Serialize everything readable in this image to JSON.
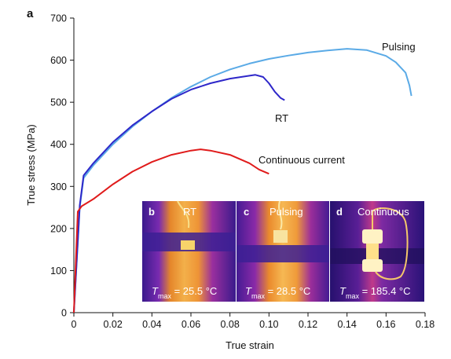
{
  "panel_label": "a",
  "colors": {
    "pulsing": "#5aaae6",
    "rt": "#2e27c9",
    "continuous": "#e01b1b",
    "axis": "#111111"
  },
  "chart_data": {
    "type": "line",
    "xlabel": "True strain",
    "ylabel": "True stress (MPa)",
    "xlim": [
      0,
      0.18
    ],
    "ylim": [
      0,
      700
    ],
    "xticks": [
      0,
      0.02,
      0.04,
      0.06,
      0.08,
      0.1,
      0.12,
      0.14,
      0.16,
      0.18
    ],
    "xtick_labels": [
      "0",
      "0.02",
      "0.04",
      "0.06",
      "0.08",
      "0.10",
      "0.12",
      "0.14",
      "0.16",
      "0.18"
    ],
    "yticks": [
      0,
      100,
      200,
      300,
      400,
      500,
      600,
      700
    ],
    "ytick_labels": [
      "0",
      "100",
      "200",
      "300",
      "400",
      "500",
      "600",
      "700"
    ],
    "grid": false,
    "legend": "none (series labelled directly on the plot)",
    "series": [
      {
        "name": "Pulsing",
        "color_key": "pulsing",
        "x": [
          0,
          0.003,
          0.005,
          0.01,
          0.02,
          0.03,
          0.04,
          0.05,
          0.06,
          0.07,
          0.08,
          0.09,
          0.1,
          0.11,
          0.12,
          0.13,
          0.14,
          0.15,
          0.16,
          0.165,
          0.17,
          0.172,
          0.173
        ],
        "y": [
          0,
          250,
          320,
          350,
          400,
          442,
          478,
          510,
          537,
          560,
          578,
          592,
          603,
          611,
          618,
          623,
          627,
          624,
          610,
          595,
          570,
          540,
          515
        ]
      },
      {
        "name": "RT",
        "color_key": "rt",
        "x": [
          0,
          0.003,
          0.005,
          0.01,
          0.02,
          0.03,
          0.04,
          0.05,
          0.06,
          0.07,
          0.08,
          0.09,
          0.093,
          0.097,
          0.1,
          0.103,
          0.106,
          0.108
        ],
        "y": [
          0,
          255,
          326,
          355,
          405,
          445,
          478,
          508,
          530,
          545,
          556,
          563,
          565,
          560,
          545,
          525,
          510,
          505
        ]
      },
      {
        "name": "Continuous current",
        "color_key": "continuous",
        "x": [
          0,
          0.002,
          0.004,
          0.01,
          0.02,
          0.03,
          0.04,
          0.05,
          0.06,
          0.065,
          0.07,
          0.08,
          0.09,
          0.095,
          0.1
        ],
        "y": [
          0,
          240,
          253,
          270,
          305,
          335,
          358,
          375,
          385,
          388,
          385,
          375,
          355,
          340,
          330
        ]
      }
    ],
    "annotations": [
      "Pulsing",
      "RT",
      "Continuous current"
    ]
  },
  "insets": [
    {
      "letter": "b",
      "label": "RT",
      "temp_symbol": "T",
      "temp_sub": "max",
      "temp_value": " = 25.5 °C"
    },
    {
      "letter": "c",
      "label": "Pulsing",
      "temp_symbol": "T",
      "temp_sub": "max",
      "temp_value": " = 28.5 °C"
    },
    {
      "letter": "d",
      "label": "Continuous",
      "temp_symbol": "T",
      "temp_sub": "max",
      "temp_value": " = 185.4 °C"
    }
  ]
}
